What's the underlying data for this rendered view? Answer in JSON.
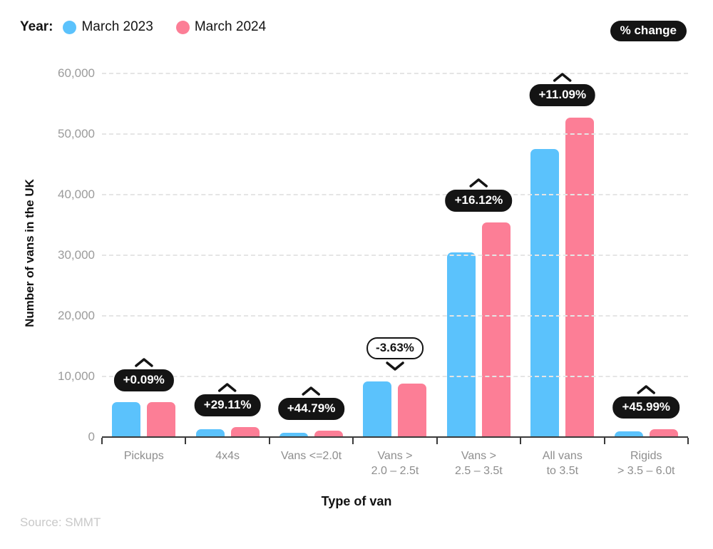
{
  "legend": {
    "label": "Year:",
    "items": [
      {
        "label": "March 2023",
        "color": "#5BC2FC"
      },
      {
        "label": "March 2024",
        "color": "#FC7E96"
      }
    ]
  },
  "pct_change_pill": "% change",
  "source": "Source: SMMT",
  "chart_data": {
    "type": "bar",
    "title": "",
    "xlabel": "Type of van",
    "ylabel": "Number of vans in the UK",
    "ylim": [
      0,
      60000
    ],
    "ytick_interval": 10000,
    "ytick_labels": [
      "0",
      "10,000",
      "20,000",
      "30,000",
      "40,000",
      "50,000",
      "60,000"
    ],
    "grid": "horizontal-dashed",
    "legend_position": "top-left",
    "categories": [
      "Pickups",
      "4x4s",
      "Vans <=2.0t",
      "Vans > 2.0 – 2.5t",
      "Vans > 2.5 – 3.5t",
      "All vans to 3.5t",
      "Rigids > 3.5 – 6.0t"
    ],
    "category_label_lines": [
      [
        "Pickups"
      ],
      [
        "4x4s"
      ],
      [
        "Vans <=2.0t"
      ],
      [
        "Vans >",
        "2.0 – 2.5t"
      ],
      [
        "Vans >",
        "2.5 – 3.5t"
      ],
      [
        "All vans",
        "to 3.5t"
      ],
      [
        "Rigids",
        "> 3.5 – 6.0t"
      ]
    ],
    "series": [
      {
        "name": "March 2023",
        "color": "#5BC2FC",
        "values": [
          5770,
          1250,
          700,
          9200,
          30500,
          47500,
          900
        ]
      },
      {
        "name": "March 2024",
        "color": "#FC7E96",
        "values": [
          5775,
          1614,
          1013,
          8866,
          35417,
          52768,
          1314
        ]
      }
    ],
    "pct_change": [
      "+0.09%",
      "+29.11%",
      "+44.79%",
      "-3.63%",
      "+16.12%",
      "+11.09%",
      "+45.99%"
    ],
    "annotation_colors": {
      "positive_bg": "#141414",
      "positive_text": "#ffffff",
      "negative_bg": "#ffffff",
      "negative_text": "#141414"
    }
  }
}
